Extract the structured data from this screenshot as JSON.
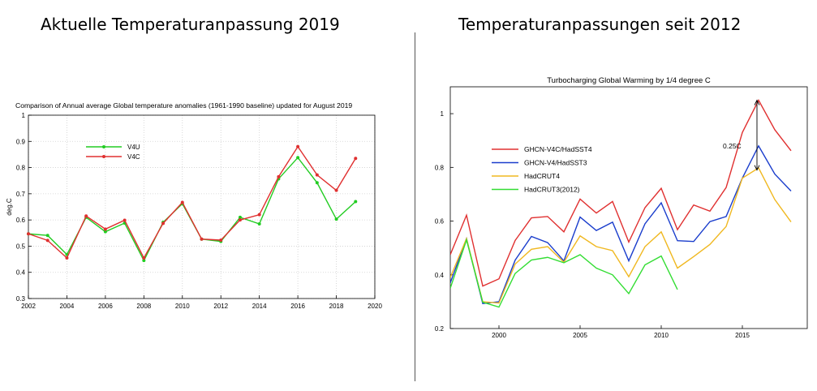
{
  "headings": {
    "left": "Aktuelle Temperaturanpassung 2019",
    "right": "Temperaturanpassungen seit 2012"
  },
  "chart_data": [
    {
      "type": "line",
      "title": "Comparison of Annual average Global temperature anomalies (1961-1990 baseline) updated for August 2019",
      "xlabel": "",
      "ylabel": "deg.C",
      "xlim": [
        2002,
        2020
      ],
      "ylim": [
        0.3,
        1.0
      ],
      "xticks": [
        "2002",
        "2004",
        "2006",
        "2008",
        "2010",
        "2012",
        "2014",
        "2016",
        "2018",
        "2020"
      ],
      "yticks": [
        "0.3",
        "0.4",
        "0.5",
        "0.6",
        "0.7",
        "0.8",
        "0.9",
        "1"
      ],
      "grid": true,
      "legend": "upper-left",
      "series": [
        {
          "name": "V4U",
          "color": "#22cc22",
          "x": [
            2002,
            2003,
            2004,
            2005,
            2006,
            2007,
            2008,
            2009,
            2010,
            2011,
            2012,
            2013,
            2014,
            2015,
            2016,
            2017,
            2018,
            2019
          ],
          "y": [
            0.547,
            0.541,
            0.468,
            0.61,
            0.555,
            0.588,
            0.445,
            0.591,
            0.662,
            0.527,
            0.518,
            0.61,
            0.585,
            0.757,
            0.838,
            0.742,
            0.603,
            0.67
          ]
        },
        {
          "name": "V4C",
          "color": "#e03030",
          "x": [
            2002,
            2003,
            2004,
            2005,
            2006,
            2007,
            2008,
            2009,
            2010,
            2011,
            2012,
            2013,
            2014,
            2015,
            2016,
            2017,
            2018,
            2019
          ],
          "y": [
            0.547,
            0.522,
            0.455,
            0.615,
            0.565,
            0.599,
            0.455,
            0.587,
            0.667,
            0.527,
            0.523,
            0.6,
            0.62,
            0.765,
            0.88,
            0.772,
            0.713,
            0.835
          ]
        }
      ]
    },
    {
      "type": "line",
      "title": "Turbocharging Global Warming by 1/4 degree C",
      "xlabel": "",
      "ylabel": "",
      "xlim": [
        1997,
        2019
      ],
      "ylim": [
        0.2,
        1.1
      ],
      "xticks": [
        "2000",
        "2005",
        "2010",
        "2015"
      ],
      "yticks": [
        "0.2",
        "0.4",
        "0.6",
        "0.8",
        "1"
      ],
      "grid": false,
      "legend": "center-left",
      "annotation": {
        "text": "0.25C",
        "x": 2013.8,
        "y": 0.87,
        "arrow_x": 2015.9,
        "arrow_y1": 0.79,
        "arrow_y2": 1.05
      },
      "series": [
        {
          "name": "GHCN-V4C/HadSST4",
          "color": "#e03030",
          "x": [
            1997,
            1998,
            1999,
            2000,
            2001,
            2002,
            2003,
            2004,
            2005,
            2006,
            2007,
            2008,
            2009,
            2010,
            2011,
            2012,
            2013,
            2014,
            2015,
            2016,
            2017,
            2018
          ],
          "y": [
            0.475,
            0.622,
            0.358,
            0.385,
            0.528,
            0.612,
            0.617,
            0.56,
            0.682,
            0.63,
            0.673,
            0.522,
            0.65,
            0.722,
            0.568,
            0.66,
            0.637,
            0.725,
            0.93,
            1.05,
            0.94,
            0.862
          ]
        },
        {
          "name": "GHCN-V4/HadSST3",
          "color": "#1a3dcc",
          "x": [
            1997,
            1998,
            1999,
            2000,
            2001,
            2002,
            2003,
            2004,
            2005,
            2006,
            2007,
            2008,
            2009,
            2010,
            2011,
            2012,
            2013,
            2014,
            2015,
            2016,
            2017,
            2018
          ],
          "y": [
            0.37,
            0.535,
            0.293,
            0.3,
            0.455,
            0.543,
            0.52,
            0.452,
            0.615,
            0.565,
            0.596,
            0.452,
            0.59,
            0.668,
            0.527,
            0.524,
            0.598,
            0.617,
            0.76,
            0.88,
            0.775,
            0.712
          ]
        },
        {
          "name": "HadCRUT4",
          "color": "#f0b820",
          "x": [
            1997,
            1998,
            1999,
            2000,
            2001,
            2002,
            2003,
            2004,
            2005,
            2006,
            2007,
            2008,
            2009,
            2010,
            2011,
            2012,
            2013,
            2014,
            2015,
            2016,
            2017,
            2018
          ],
          "y": [
            0.39,
            0.535,
            0.3,
            0.295,
            0.44,
            0.495,
            0.505,
            0.447,
            0.545,
            0.505,
            0.49,
            0.393,
            0.505,
            0.56,
            0.425,
            0.468,
            0.513,
            0.58,
            0.76,
            0.798,
            0.68,
            0.597
          ]
        },
        {
          "name": "HadCRUT3(2012)",
          "color": "#33dd33",
          "x": [
            1997,
            1998,
            1999,
            2000,
            2001,
            2002,
            2003,
            2004,
            2005,
            2006,
            2007,
            2008,
            2009,
            2010,
            2011
          ],
          "y": [
            0.35,
            0.53,
            0.298,
            0.28,
            0.405,
            0.455,
            0.465,
            0.445,
            0.475,
            0.425,
            0.4,
            0.33,
            0.437,
            0.47,
            0.345
          ]
        }
      ]
    }
  ]
}
